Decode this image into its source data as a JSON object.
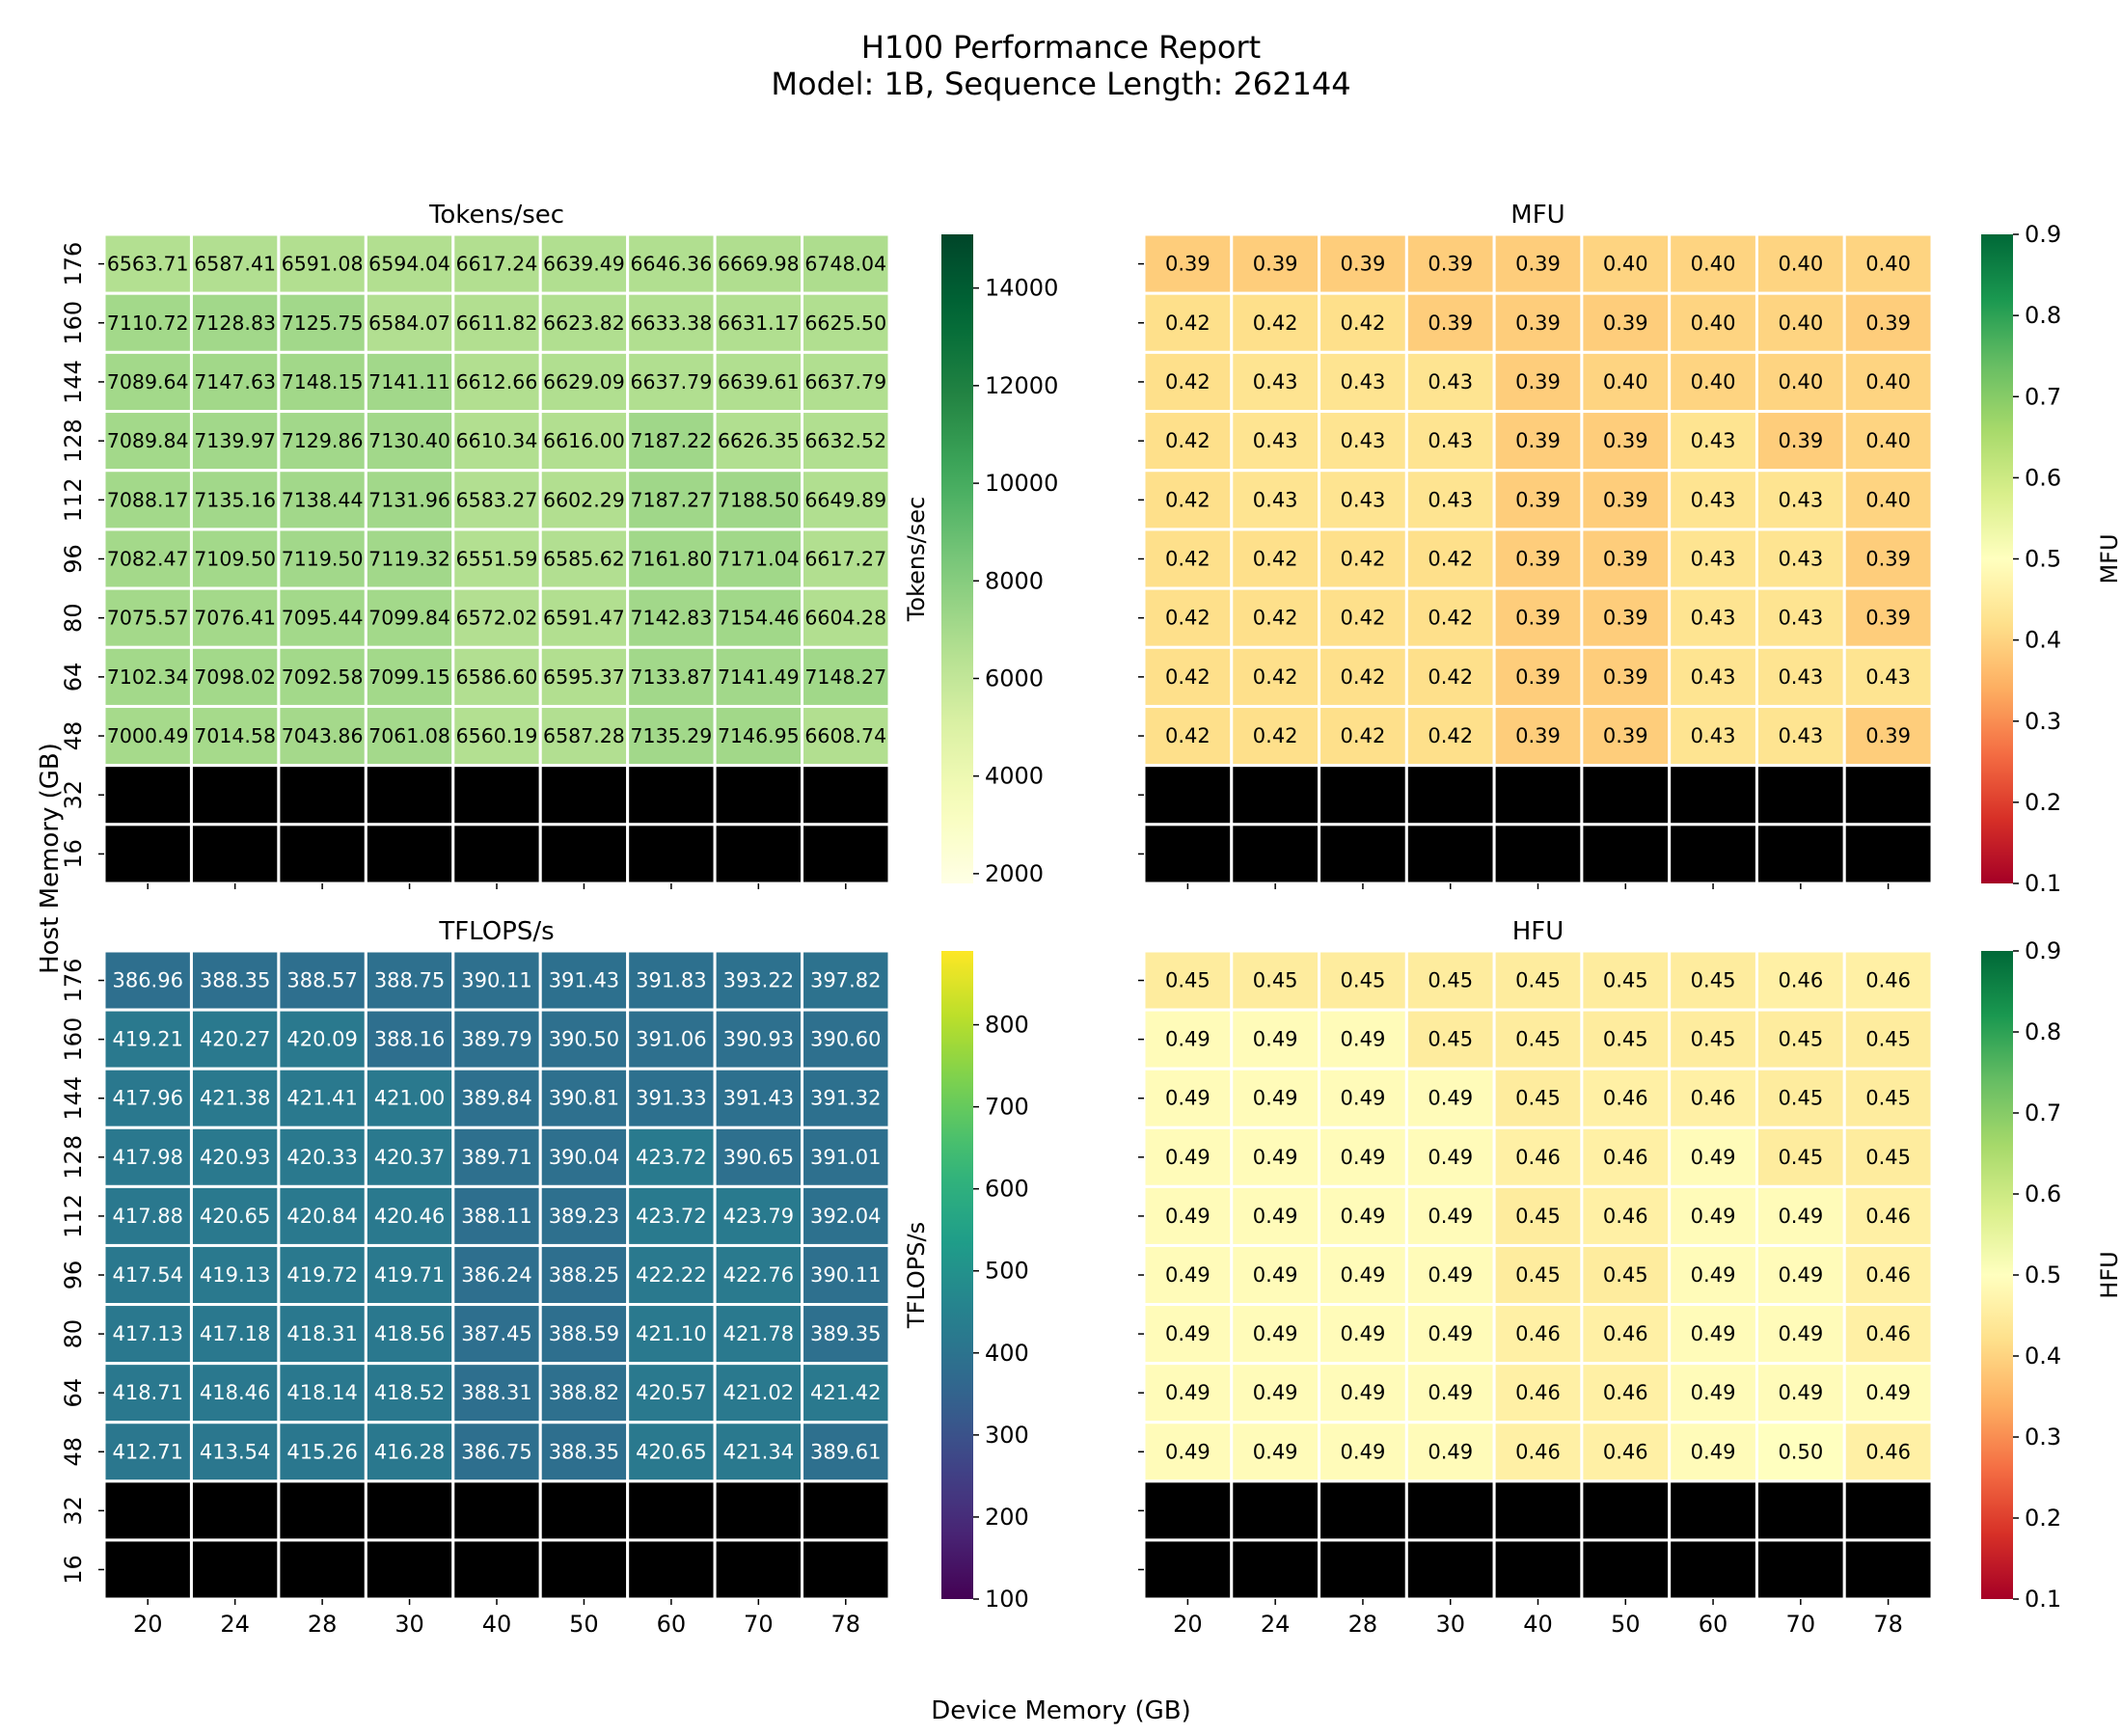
{
  "suptitle_line1": "H100 Performance Report",
  "suptitle_line2": "Model: 1B, Sequence Length: 262144",
  "shared_xlabel": "Device Memory (GB)",
  "shared_ylabel": "Host Memory (GB)",
  "chart_data": [
    {
      "type": "heatmap",
      "title": "Tokens/sec",
      "colorbar_label": "Tokens/sec",
      "colormap": "YlGn",
      "vmin": 1800,
      "vmax": 15100,
      "colorbar_ticks": [
        2000,
        4000,
        6000,
        8000,
        10000,
        12000,
        14000
      ],
      "x": [
        "20",
        "24",
        "28",
        "30",
        "40",
        "50",
        "60",
        "70",
        "78"
      ],
      "y": [
        "176",
        "160",
        "144",
        "128",
        "112",
        "96",
        "80",
        "64",
        "48",
        "32",
        "16"
      ],
      "missing_color": "#000000",
      "values": [
        [
          "6563.71",
          "6587.41",
          "6591.08",
          "6594.04",
          "6617.24",
          "6639.49",
          "6646.36",
          "6669.98",
          "6748.04"
        ],
        [
          "7110.72",
          "7128.83",
          "7125.75",
          "6584.07",
          "6611.82",
          "6623.82",
          "6633.38",
          "6631.17",
          "6625.50"
        ],
        [
          "7089.64",
          "7147.63",
          "7148.15",
          "7141.11",
          "6612.66",
          "6629.09",
          "6637.79",
          "6639.61",
          "6637.79"
        ],
        [
          "7089.84",
          "7139.97",
          "7129.86",
          "7130.40",
          "6610.34",
          "6616.00",
          "7187.22",
          "6626.35",
          "6632.52"
        ],
        [
          "7088.17",
          "7135.16",
          "7138.44",
          "7131.96",
          "6583.27",
          "6602.29",
          "7187.27",
          "7188.50",
          "6649.89"
        ],
        [
          "7082.47",
          "7109.50",
          "7119.50",
          "7119.32",
          "6551.59",
          "6585.62",
          "7161.80",
          "7171.04",
          "6617.27"
        ],
        [
          "7075.57",
          "7076.41",
          "7095.44",
          "7099.84",
          "6572.02",
          "6591.47",
          "7142.83",
          "7154.46",
          "6604.28"
        ],
        [
          "7102.34",
          "7098.02",
          "7092.58",
          "7099.15",
          "6586.60",
          "6595.37",
          "7133.87",
          "7141.49",
          "7148.27"
        ],
        [
          "7000.49",
          "7014.58",
          "7043.86",
          "7061.08",
          "6560.19",
          "6587.28",
          "7135.29",
          "7146.95",
          "6608.74"
        ],
        [
          null,
          null,
          null,
          null,
          null,
          null,
          null,
          null,
          null
        ],
        [
          null,
          null,
          null,
          null,
          null,
          null,
          null,
          null,
          null
        ]
      ]
    },
    {
      "type": "heatmap",
      "title": "MFU",
      "colorbar_label": "MFU",
      "colormap": "RdYlGn",
      "vmin": 0.1,
      "vmax": 0.9,
      "colorbar_ticks": [
        0.1,
        0.2,
        0.3,
        0.4,
        0.5,
        0.6,
        0.7,
        0.8,
        0.9
      ],
      "x": [
        "20",
        "24",
        "28",
        "30",
        "40",
        "50",
        "60",
        "70",
        "78"
      ],
      "y": [
        "176",
        "160",
        "144",
        "128",
        "112",
        "96",
        "80",
        "64",
        "48",
        "32",
        "16"
      ],
      "missing_color": "#000000",
      "values": [
        [
          "0.39",
          "0.39",
          "0.39",
          "0.39",
          "0.39",
          "0.40",
          "0.40",
          "0.40",
          "0.40"
        ],
        [
          "0.42",
          "0.42",
          "0.42",
          "0.39",
          "0.39",
          "0.39",
          "0.40",
          "0.40",
          "0.39"
        ],
        [
          "0.42",
          "0.43",
          "0.43",
          "0.43",
          "0.39",
          "0.40",
          "0.40",
          "0.40",
          "0.40"
        ],
        [
          "0.42",
          "0.43",
          "0.43",
          "0.43",
          "0.39",
          "0.39",
          "0.43",
          "0.39",
          "0.40"
        ],
        [
          "0.42",
          "0.43",
          "0.43",
          "0.43",
          "0.39",
          "0.39",
          "0.43",
          "0.43",
          "0.40"
        ],
        [
          "0.42",
          "0.42",
          "0.42",
          "0.42",
          "0.39",
          "0.39",
          "0.43",
          "0.43",
          "0.39"
        ],
        [
          "0.42",
          "0.42",
          "0.42",
          "0.42",
          "0.39",
          "0.39",
          "0.43",
          "0.43",
          "0.39"
        ],
        [
          "0.42",
          "0.42",
          "0.42",
          "0.42",
          "0.39",
          "0.39",
          "0.43",
          "0.43",
          "0.43"
        ],
        [
          "0.42",
          "0.42",
          "0.42",
          "0.42",
          "0.39",
          "0.39",
          "0.43",
          "0.43",
          "0.39"
        ],
        [
          null,
          null,
          null,
          null,
          null,
          null,
          null,
          null,
          null
        ],
        [
          null,
          null,
          null,
          null,
          null,
          null,
          null,
          null,
          null
        ]
      ]
    },
    {
      "type": "heatmap",
      "title": "TFLOPS/s",
      "colorbar_label": "TFLOPS/s",
      "colormap": "viridis",
      "vmin": 100,
      "vmax": 890,
      "colorbar_ticks": [
        100,
        200,
        300,
        400,
        500,
        600,
        700,
        800
      ],
      "x": [
        "20",
        "24",
        "28",
        "30",
        "40",
        "50",
        "60",
        "70",
        "78"
      ],
      "y": [
        "176",
        "160",
        "144",
        "128",
        "112",
        "96",
        "80",
        "64",
        "48",
        "32",
        "16"
      ],
      "missing_color": "#000000",
      "values": [
        [
          "386.96",
          "388.35",
          "388.57",
          "388.75",
          "390.11",
          "391.43",
          "391.83",
          "393.22",
          "397.82"
        ],
        [
          "419.21",
          "420.27",
          "420.09",
          "388.16",
          "389.79",
          "390.50",
          "391.06",
          "390.93",
          "390.60"
        ],
        [
          "417.96",
          "421.38",
          "421.41",
          "421.00",
          "389.84",
          "390.81",
          "391.33",
          "391.43",
          "391.32"
        ],
        [
          "417.98",
          "420.93",
          "420.33",
          "420.37",
          "389.71",
          "390.04",
          "423.72",
          "390.65",
          "391.01"
        ],
        [
          "417.88",
          "420.65",
          "420.84",
          "420.46",
          "388.11",
          "389.23",
          "423.72",
          "423.79",
          "392.04"
        ],
        [
          "417.54",
          "419.13",
          "419.72",
          "419.71",
          "386.24",
          "388.25",
          "422.22",
          "422.76",
          "390.11"
        ],
        [
          "417.13",
          "417.18",
          "418.31",
          "418.56",
          "387.45",
          "388.59",
          "421.10",
          "421.78",
          "389.35"
        ],
        [
          "418.71",
          "418.46",
          "418.14",
          "418.52",
          "388.31",
          "388.82",
          "420.57",
          "421.02",
          "421.42"
        ],
        [
          "412.71",
          "413.54",
          "415.26",
          "416.28",
          "386.75",
          "388.35",
          "420.65",
          "421.34",
          "389.61"
        ],
        [
          null,
          null,
          null,
          null,
          null,
          null,
          null,
          null,
          null
        ],
        [
          null,
          null,
          null,
          null,
          null,
          null,
          null,
          null,
          null
        ]
      ]
    },
    {
      "type": "heatmap",
      "title": "HFU",
      "colorbar_label": "HFU",
      "colormap": "RdYlGn",
      "vmin": 0.1,
      "vmax": 0.9,
      "colorbar_ticks": [
        0.1,
        0.2,
        0.3,
        0.4,
        0.5,
        0.6,
        0.7,
        0.8,
        0.9
      ],
      "x": [
        "20",
        "24",
        "28",
        "30",
        "40",
        "50",
        "60",
        "70",
        "78"
      ],
      "y": [
        "176",
        "160",
        "144",
        "128",
        "112",
        "96",
        "80",
        "64",
        "48",
        "32",
        "16"
      ],
      "missing_color": "#000000",
      "values": [
        [
          "0.45",
          "0.45",
          "0.45",
          "0.45",
          "0.45",
          "0.45",
          "0.45",
          "0.46",
          "0.46"
        ],
        [
          "0.49",
          "0.49",
          "0.49",
          "0.45",
          "0.45",
          "0.45",
          "0.45",
          "0.45",
          "0.45"
        ],
        [
          "0.49",
          "0.49",
          "0.49",
          "0.49",
          "0.45",
          "0.46",
          "0.46",
          "0.45",
          "0.45"
        ],
        [
          "0.49",
          "0.49",
          "0.49",
          "0.49",
          "0.46",
          "0.46",
          "0.49",
          "0.45",
          "0.45"
        ],
        [
          "0.49",
          "0.49",
          "0.49",
          "0.49",
          "0.45",
          "0.46",
          "0.49",
          "0.49",
          "0.46"
        ],
        [
          "0.49",
          "0.49",
          "0.49",
          "0.49",
          "0.45",
          "0.45",
          "0.49",
          "0.49",
          "0.46"
        ],
        [
          "0.49",
          "0.49",
          "0.49",
          "0.49",
          "0.46",
          "0.46",
          "0.49",
          "0.49",
          "0.46"
        ],
        [
          "0.49",
          "0.49",
          "0.49",
          "0.49",
          "0.46",
          "0.46",
          "0.49",
          "0.49",
          "0.49"
        ],
        [
          "0.49",
          "0.49",
          "0.49",
          "0.49",
          "0.46",
          "0.46",
          "0.49",
          "0.50",
          "0.46"
        ],
        [
          null,
          null,
          null,
          null,
          null,
          null,
          null,
          null,
          null
        ],
        [
          null,
          null,
          null,
          null,
          null,
          null,
          null,
          null,
          null
        ]
      ]
    }
  ]
}
